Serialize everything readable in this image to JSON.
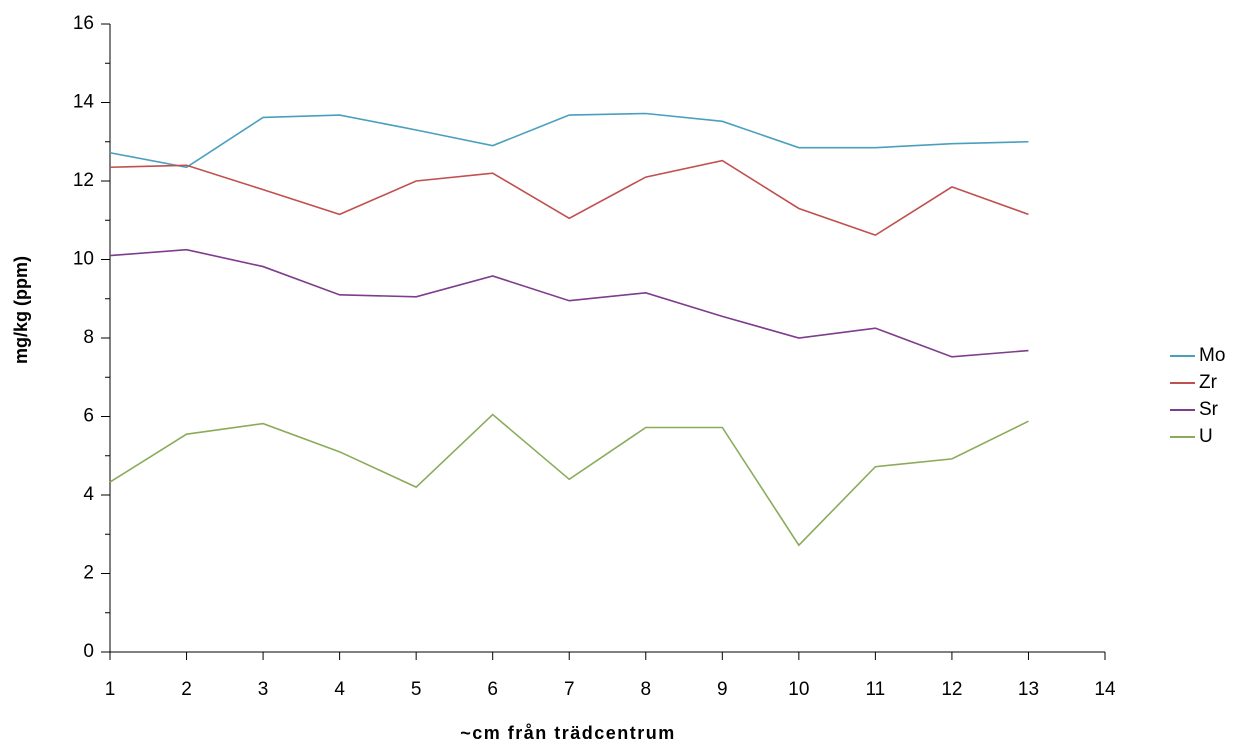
{
  "chart_data": {
    "type": "line",
    "x_label": "~cm från trädcentrum",
    "y_label": "mg/kg (ppm)",
    "x": [
      1,
      2,
      3,
      4,
      5,
      6,
      7,
      8,
      9,
      10,
      11,
      12,
      13
    ],
    "series": [
      {
        "name": "Mo",
        "color": "#4a9fbf",
        "values": [
          12.72,
          12.35,
          13.62,
          13.68,
          13.3,
          12.9,
          13.68,
          13.72,
          13.52,
          12.85,
          12.85,
          12.95,
          13.0
        ]
      },
      {
        "name": "Zr",
        "color": "#c0504d",
        "values": [
          12.35,
          12.4,
          11.78,
          11.15,
          12.0,
          12.2,
          11.05,
          12.1,
          12.52,
          11.3,
          10.62,
          11.85,
          11.15
        ]
      },
      {
        "name": "Sr",
        "color": "#7d3c8c",
        "values": [
          10.1,
          10.25,
          9.82,
          9.1,
          9.05,
          9.58,
          8.95,
          9.15,
          8.55,
          8.0,
          8.25,
          7.52,
          7.68
        ]
      },
      {
        "name": "U",
        "color": "#8aab5a",
        "values": [
          4.33,
          5.55,
          5.82,
          5.1,
          4.2,
          6.05,
          4.4,
          5.72,
          5.72,
          2.72,
          4.72,
          4.92,
          5.88
        ]
      }
    ],
    "xlim": [
      1,
      14
    ],
    "xticks": [
      1,
      2,
      3,
      4,
      5,
      6,
      7,
      8,
      9,
      10,
      11,
      12,
      13,
      14
    ],
    "ylim": [
      0,
      16
    ],
    "yticks": [
      0,
      2,
      4,
      6,
      8,
      10,
      12,
      14,
      16
    ],
    "grid": false,
    "legend": "right"
  }
}
